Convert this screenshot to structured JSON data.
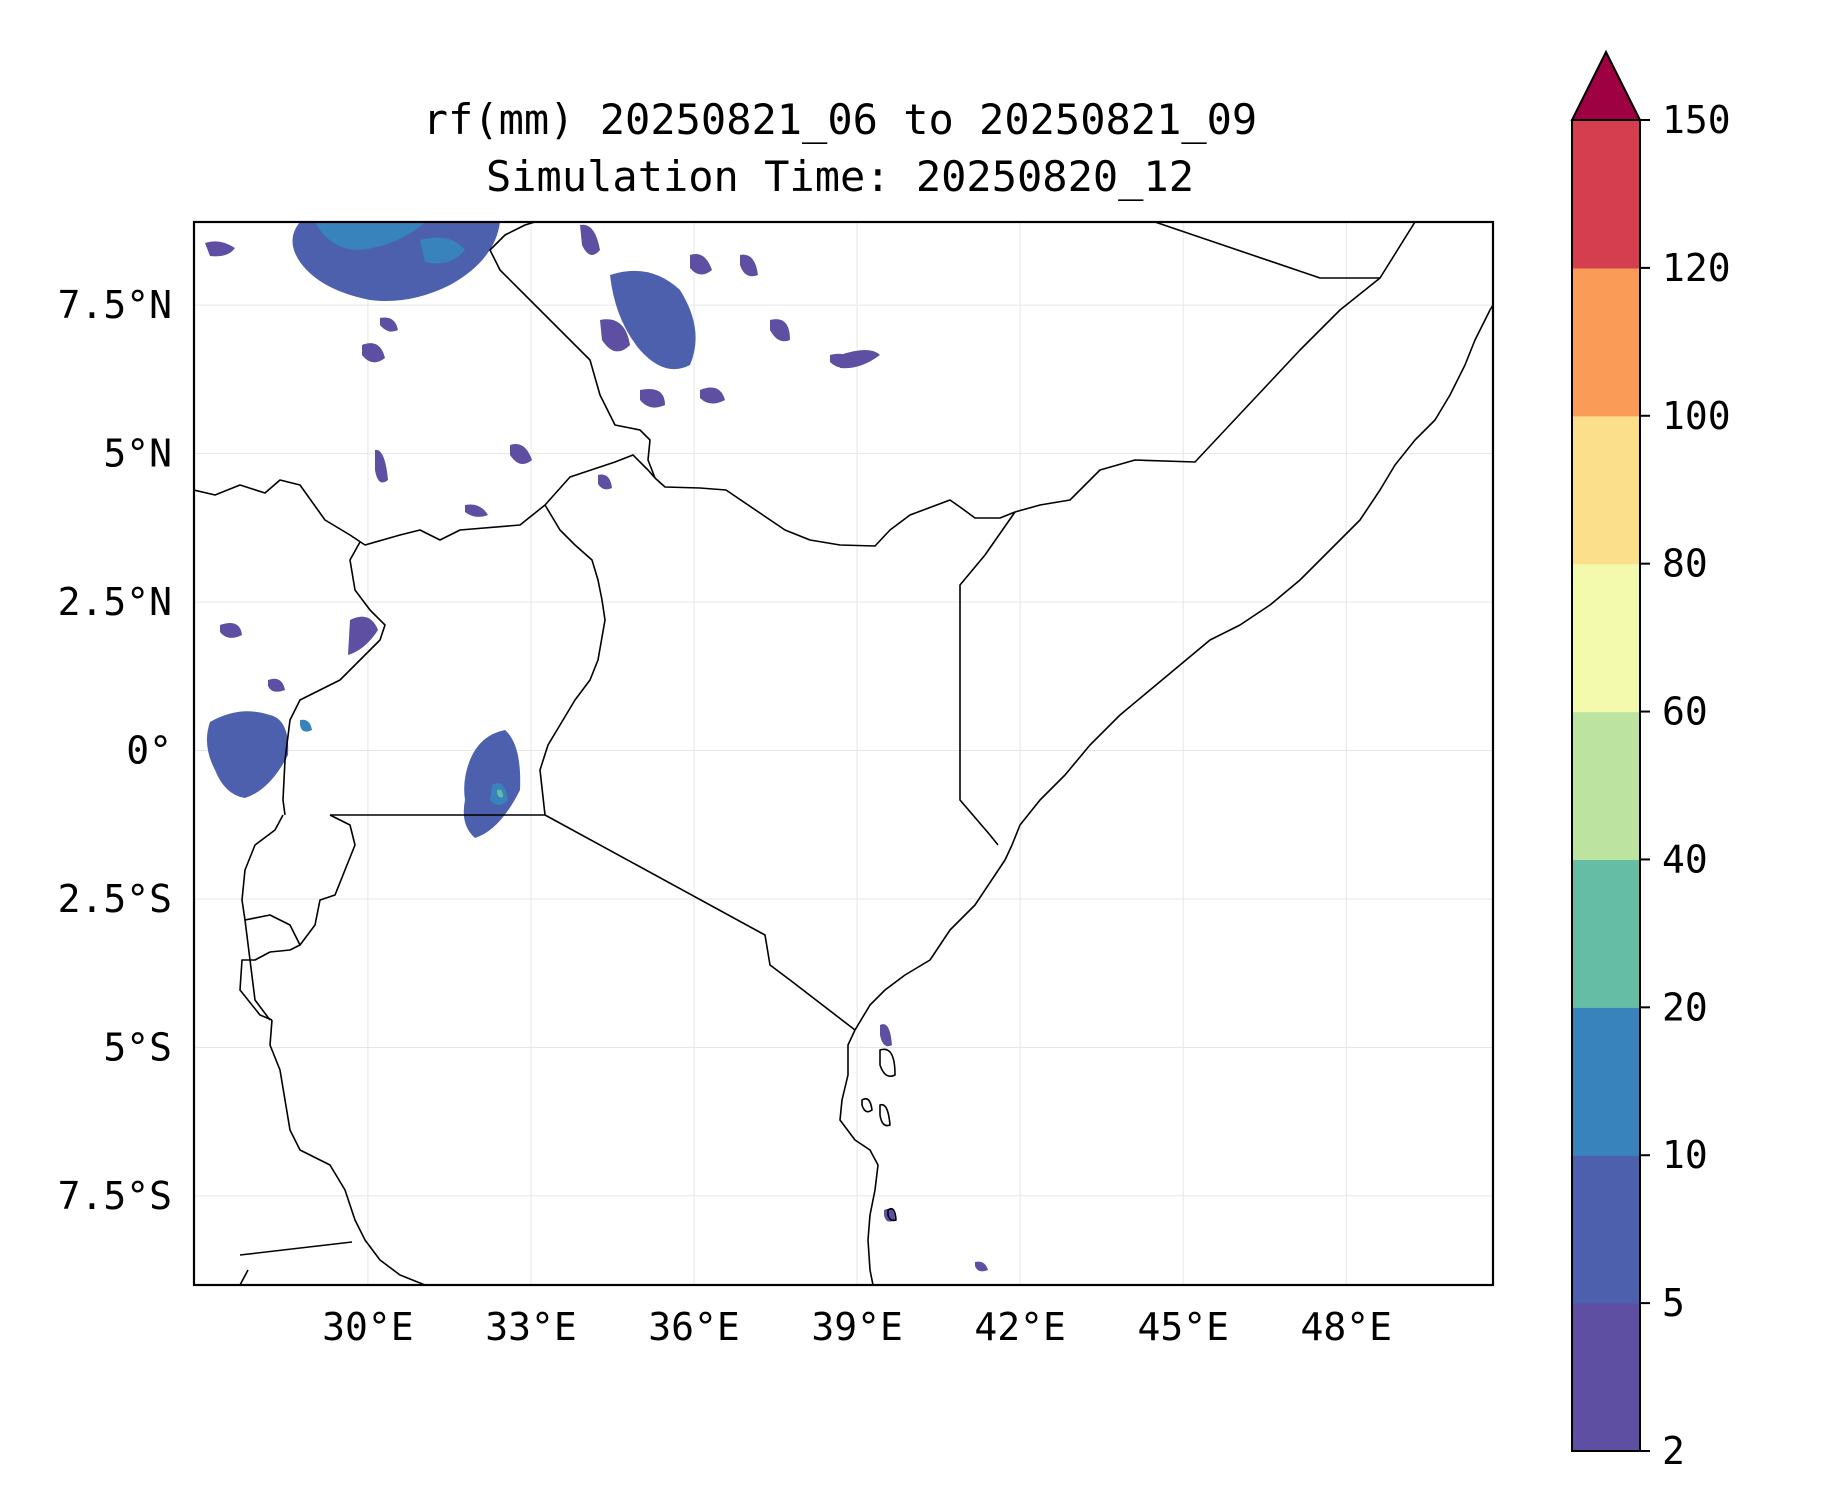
{
  "title": {
    "line1": "rf(mm) 20250821_06 to 20250821_09",
    "line2": "Simulation Time: 20250820_12"
  },
  "map": {
    "lon_range": [
      26.8,
      50.7
    ],
    "lat_range": [
      -9.0,
      8.9
    ],
    "gridlines": true,
    "lon_ticks": [
      {
        "value": 30,
        "label": "30°E"
      },
      {
        "value": 33,
        "label": "33°E"
      },
      {
        "value": 36,
        "label": "36°E"
      },
      {
        "value": 39,
        "label": "39°E"
      },
      {
        "value": 42,
        "label": "42°E"
      },
      {
        "value": 45,
        "label": "45°E"
      },
      {
        "value": 48,
        "label": "48°E"
      }
    ],
    "lat_ticks": [
      {
        "value": 7.5,
        "label": "7.5°N"
      },
      {
        "value": 5,
        "label": "5°N"
      },
      {
        "value": 2.5,
        "label": "2.5°N"
      },
      {
        "value": 0,
        "label": "0°"
      },
      {
        "value": -2.5,
        "label": "2.5°S"
      },
      {
        "value": -5,
        "label": "5°S"
      },
      {
        "value": -7.5,
        "label": "7.5°S"
      }
    ]
  },
  "colorbar": {
    "extend": "max",
    "extend_color": "#9e0142",
    "levels": [
      2,
      5,
      10,
      20,
      40,
      60,
      80,
      100,
      120,
      150
    ],
    "colors": [
      "#5e4fa2",
      "#4c60ad",
      "#3983bd",
      "#65bda6",
      "#bce4a0",
      "#f4faad",
      "#fcdf8a",
      "#fa9c58",
      "#d53e4f"
    ]
  }
}
